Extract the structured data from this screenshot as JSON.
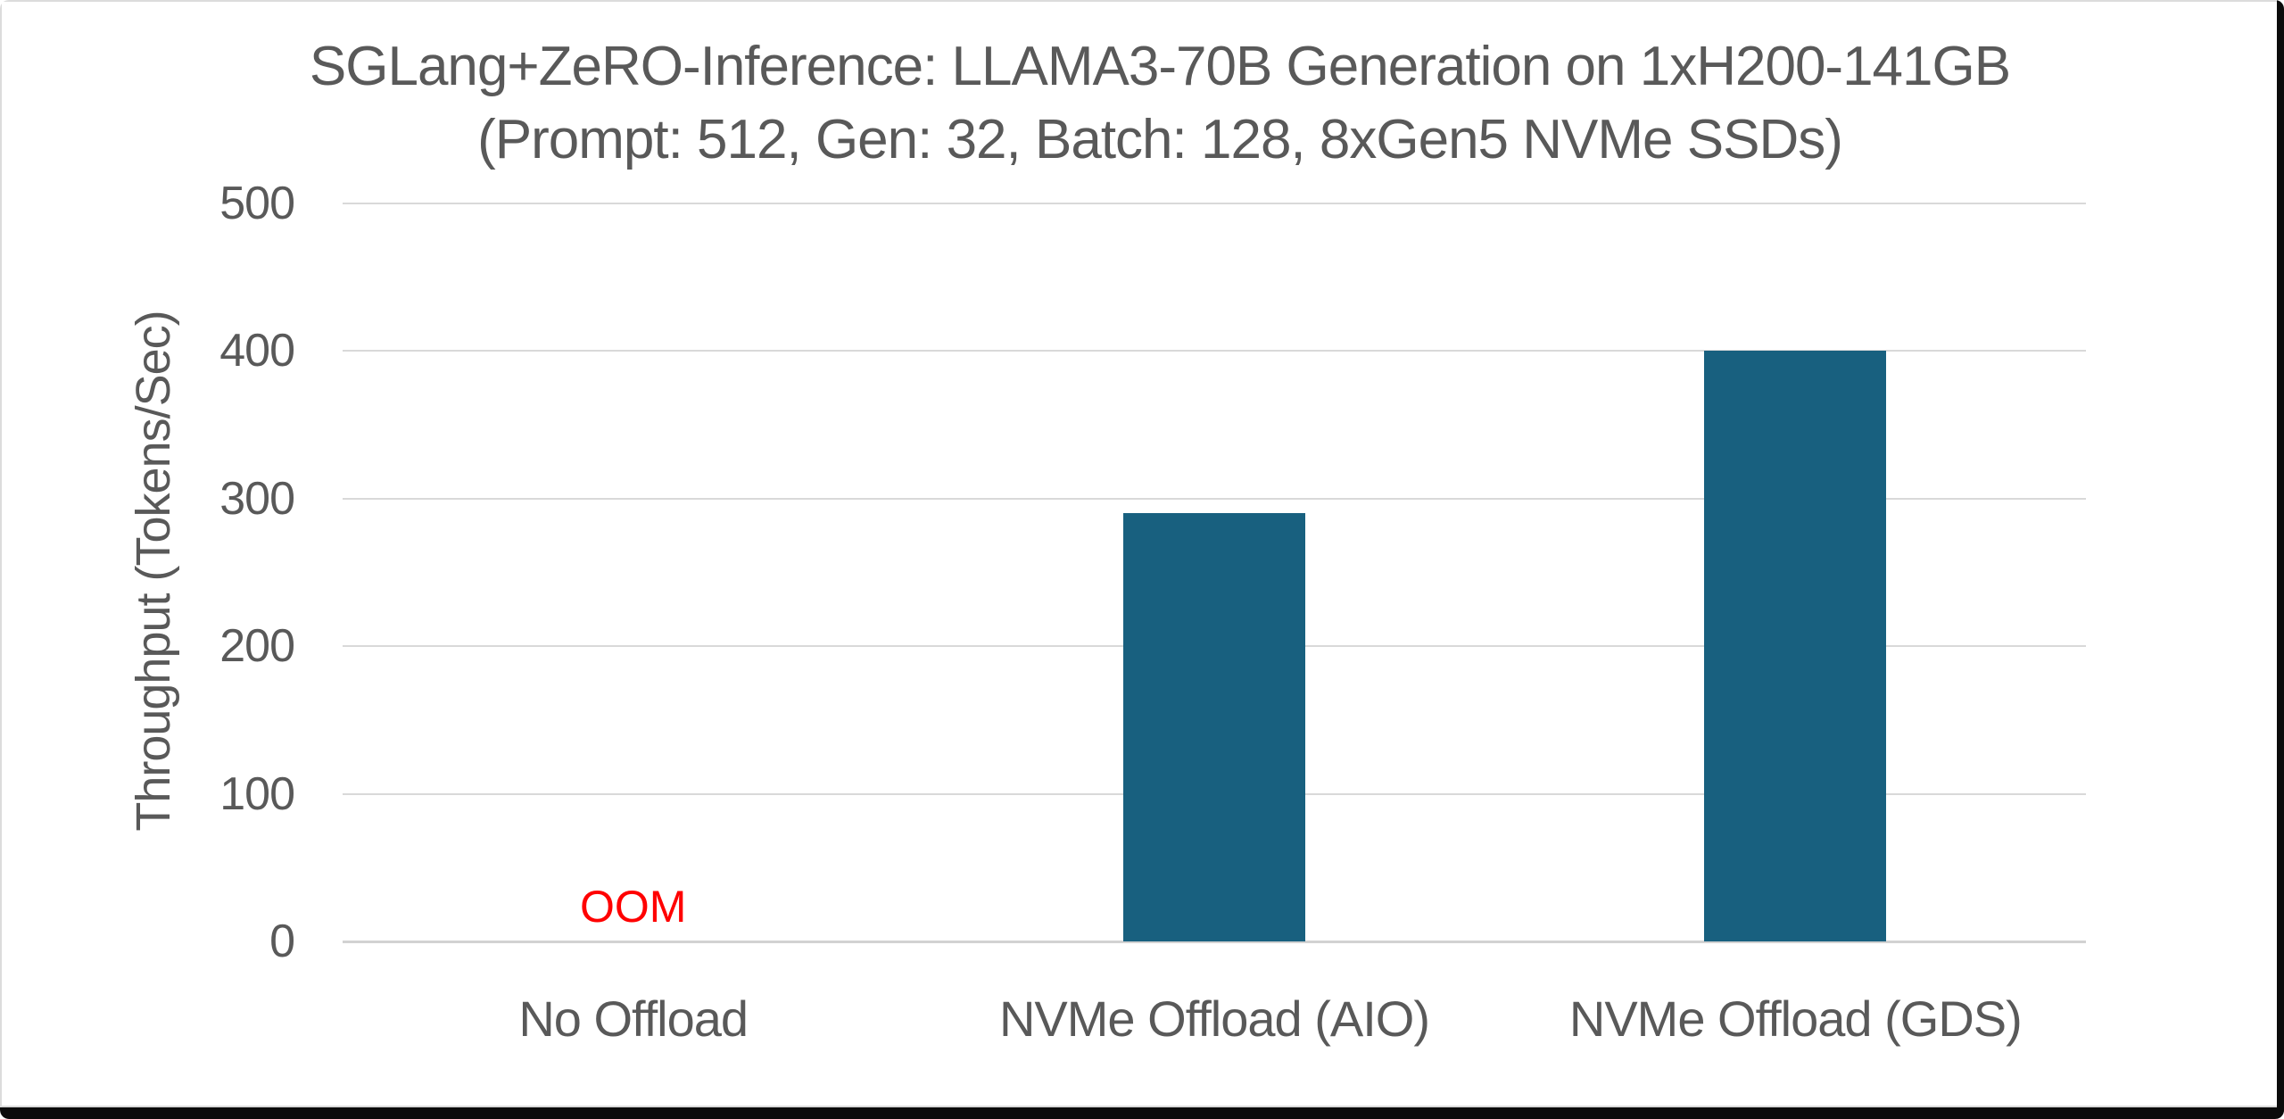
{
  "chart_data": {
    "type": "bar",
    "title": "SGLang+ZeRO-Inference: LLAMA3-70B Generation on 1xH200-141GB",
    "subtitle": "(Prompt: 512, Gen: 32, Batch: 128, 8xGen5 NVMe SSDs)",
    "ylabel": "Throughput (Tokens/Sec)",
    "xlabel": "",
    "categories": [
      "No Offload",
      "NVMe Offload (AIO)",
      "NVMe Offload (GDS)"
    ],
    "values": [
      null,
      290,
      400
    ],
    "annotations": [
      {
        "category_index": 0,
        "text": "OOM",
        "color": "#FF0000"
      }
    ],
    "y_ticks": [
      0,
      100,
      200,
      300,
      400,
      500
    ],
    "ylim": [
      0,
      500
    ],
    "grid": true,
    "legend": false,
    "bar_color": "#18607F",
    "text_color": "#595959",
    "gridline_color": "#D9D9D9"
  }
}
